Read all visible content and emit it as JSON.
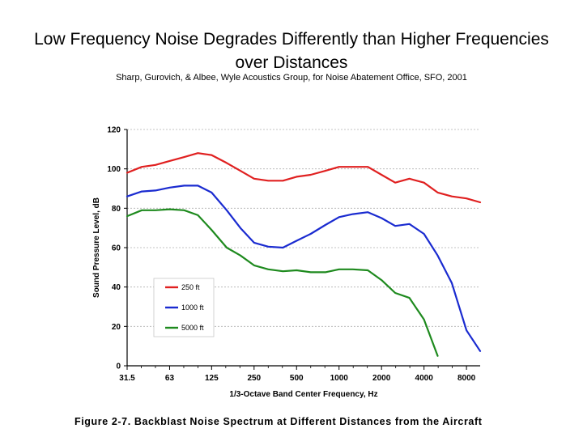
{
  "slide": {
    "title": "Low Frequency Noise Degrades Differently than Higher Frequencies over Distances",
    "subtitle": "Sharp, Gurovich, & Albee, Wyle Acoustics Group, for Noise Abatement Office, SFO, 2001"
  },
  "figure": {
    "caption": "Figure 2-7. Backblast Noise Spectrum at Different Distances from the Aircraft"
  },
  "chart_data": {
    "type": "line",
    "xlabel": "1/3-Octave Band Center Frequency, Hz",
    "ylabel": "Sound Pressure Level, dB",
    "x_scale": "log",
    "xlim": [
      31.5,
      10000
    ],
    "ylim": [
      0,
      120
    ],
    "x_ticks": [
      31.5,
      63,
      125,
      250,
      500,
      1000,
      2000,
      4000,
      8000
    ],
    "x_tick_labels": [
      "31.5",
      "63",
      "125",
      "250",
      "500",
      "1000",
      "2000",
      "4000",
      "8000"
    ],
    "y_ticks": [
      0,
      20,
      40,
      60,
      80,
      100,
      120
    ],
    "grid": "horizontal dashed",
    "legend_placement": "lower-left",
    "series": [
      {
        "name": "250 ft",
        "color": "#e02020",
        "x": [
          31.5,
          40,
          50,
          63,
          80,
          100,
          125,
          160,
          200,
          250,
          315,
          400,
          500,
          630,
          800,
          1000,
          1250,
          1600,
          2000,
          2500,
          3150,
          4000,
          5000,
          6300,
          8000,
          10000
        ],
        "y": [
          98,
          101,
          102,
          104,
          106,
          108,
          107,
          103,
          99,
          95,
          94,
          94,
          96,
          97,
          99,
          101,
          101,
          101,
          97,
          93,
          95,
          93,
          88,
          86,
          85,
          83
        ]
      },
      {
        "name": "1000 ft",
        "color": "#1a2bd0",
        "x": [
          31.5,
          40,
          50,
          63,
          80,
          100,
          125,
          160,
          200,
          250,
          315,
          400,
          500,
          630,
          800,
          1000,
          1250,
          1600,
          2000,
          2500,
          3150,
          4000,
          5000,
          6300,
          8000,
          10000
        ],
        "y": [
          86,
          88.5,
          89,
          90.5,
          91.5,
          91.5,
          88,
          79,
          70,
          62.5,
          60.5,
          60,
          63.5,
          67,
          71.5,
          75.5,
          77,
          78,
          75,
          71,
          72,
          67,
          56,
          42,
          18,
          7.5
        ]
      },
      {
        "name": "5000 ft",
        "color": "#1e8a1e",
        "x": [
          31.5,
          40,
          50,
          63,
          80,
          100,
          125,
          160,
          200,
          250,
          315,
          400,
          500,
          630,
          800,
          1000,
          1250,
          1600,
          2000,
          2500,
          3150,
          4000,
          5000
        ],
        "y": [
          76,
          79,
          79,
          79.5,
          79,
          76.5,
          69,
          60,
          56,
          51,
          49,
          48,
          48.5,
          47.5,
          47.5,
          49,
          49,
          48.5,
          43.5,
          37,
          34.5,
          23.5,
          5
        ]
      }
    ]
  }
}
